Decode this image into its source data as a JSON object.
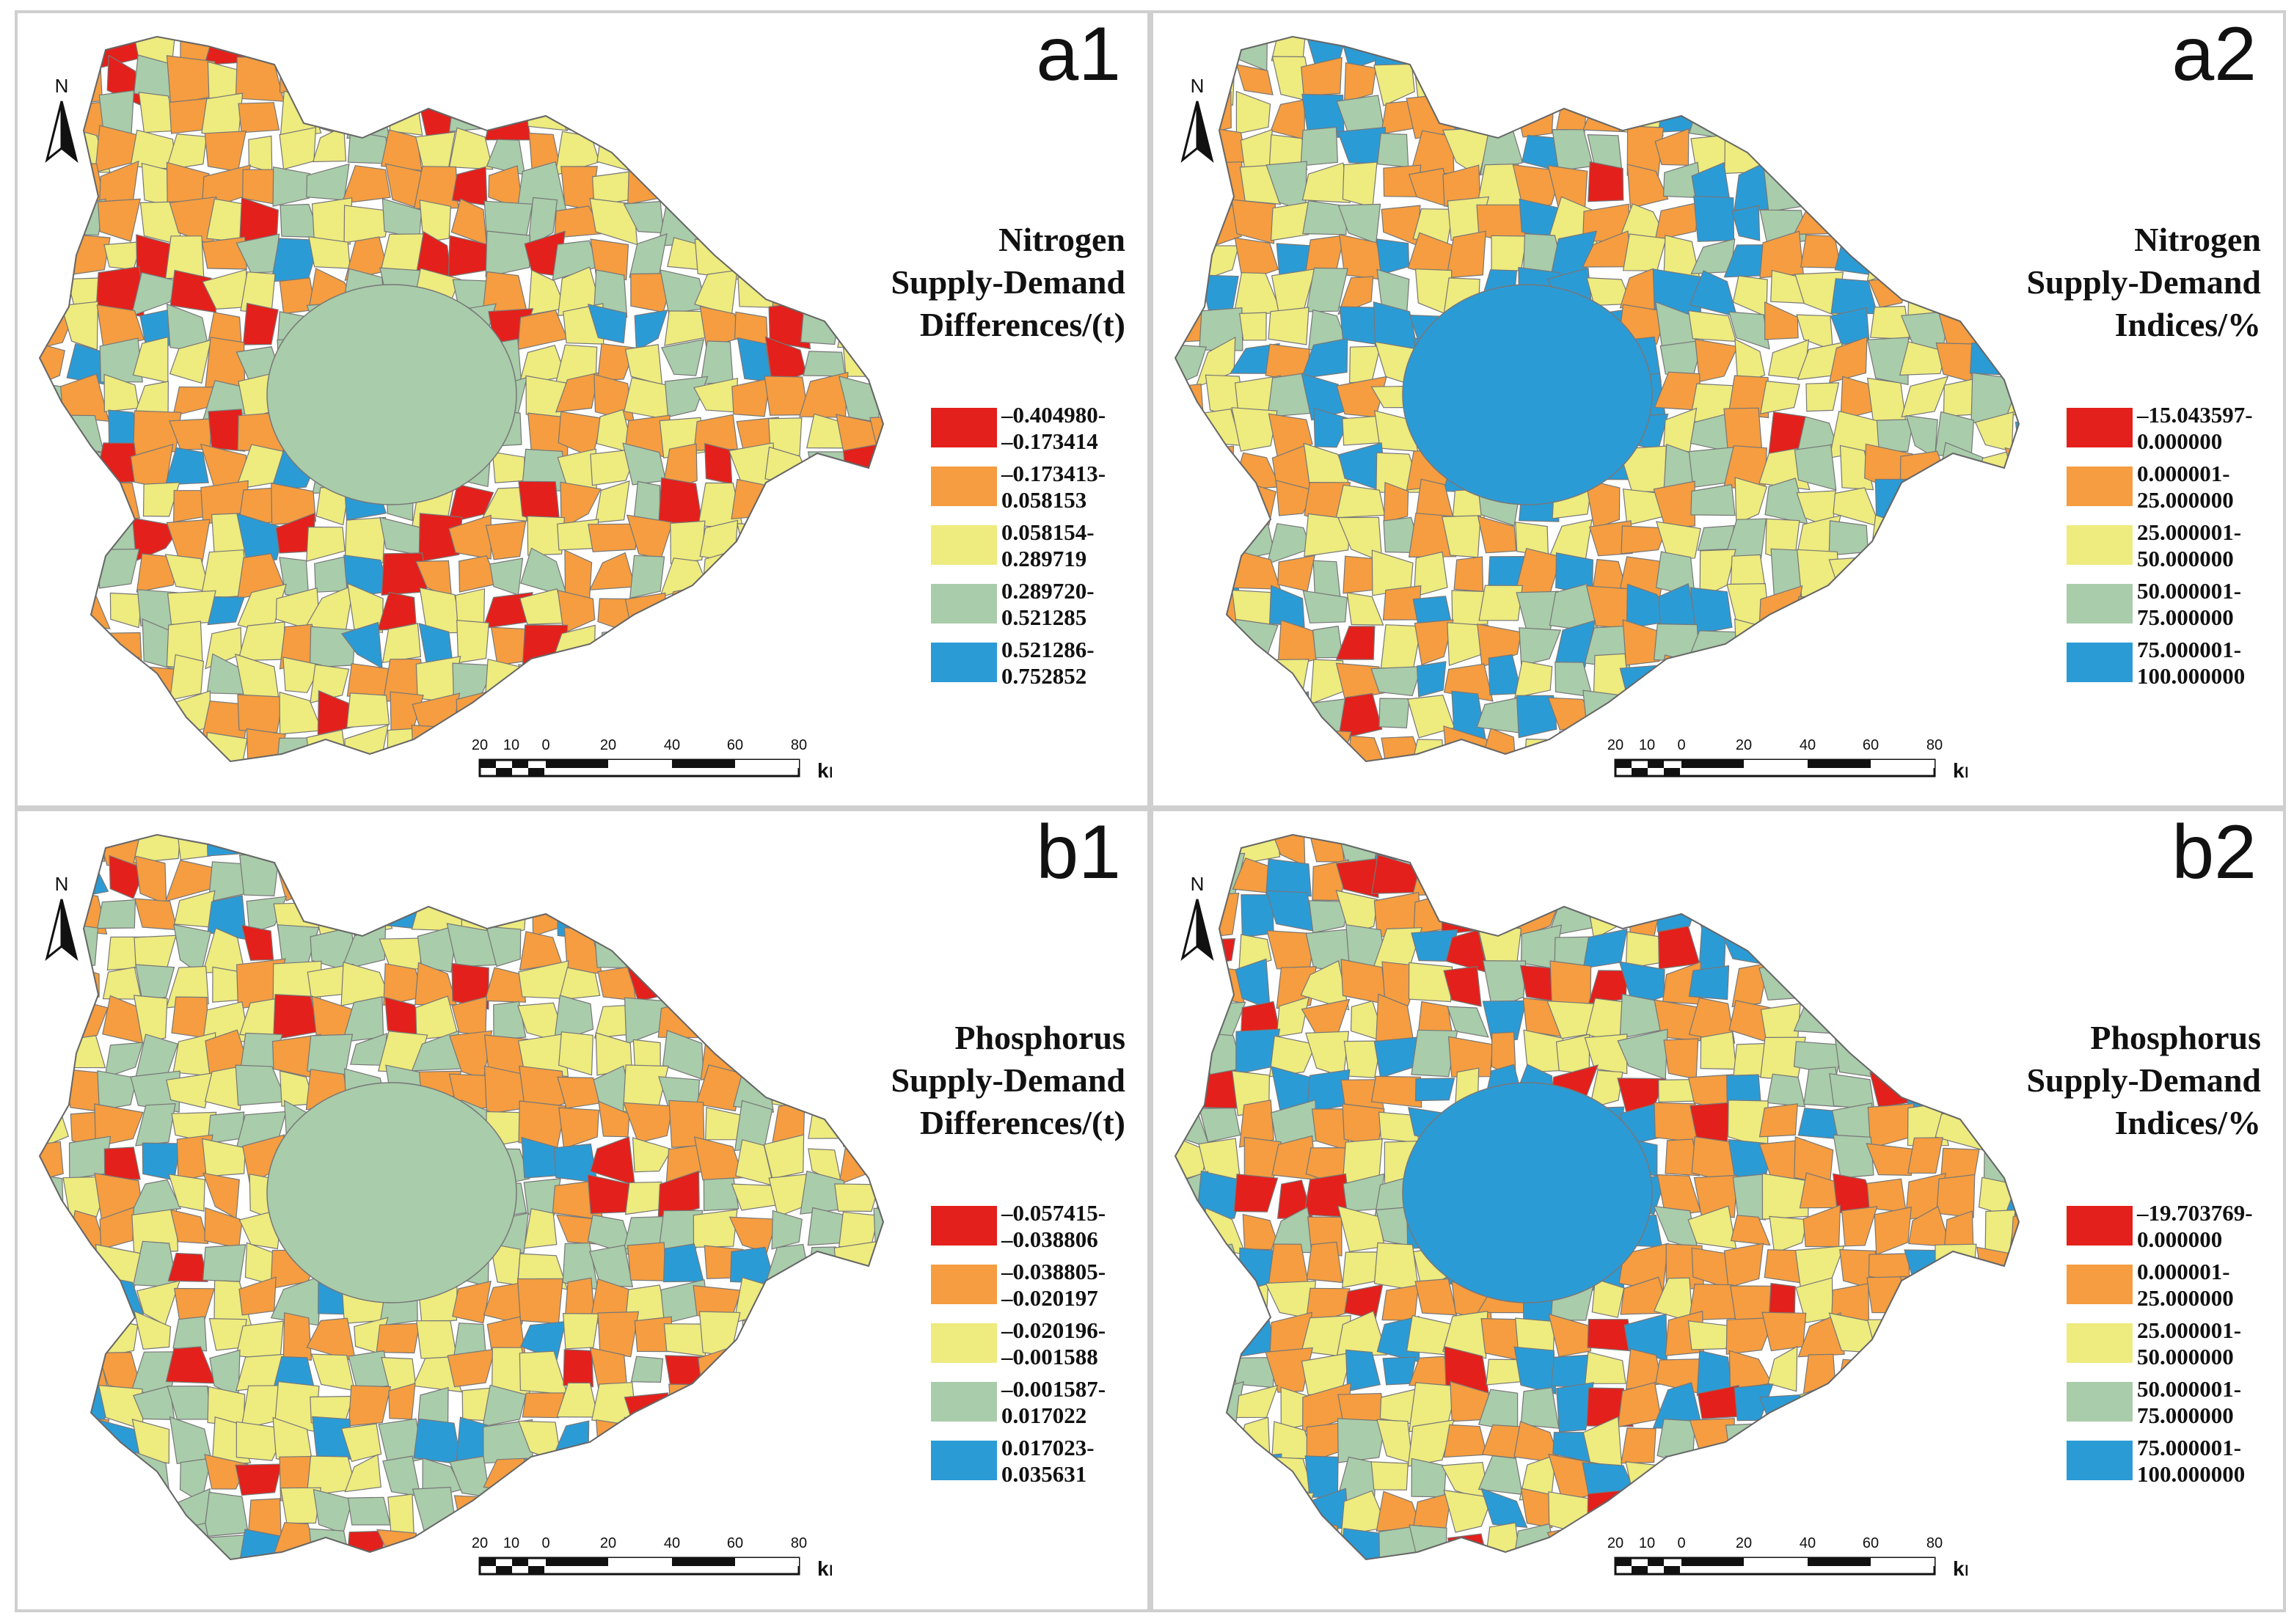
{
  "colors": {
    "class1": "#e3201b",
    "class2": "#f59d40",
    "class3": "#eeeb7f",
    "class4": "#a9ccaa",
    "class5": "#2b9bd6",
    "boundary": "#777777"
  },
  "north_label": "N",
  "scale": {
    "ticks": [
      "20",
      "10",
      "0",
      "20",
      "40",
      "60",
      "80"
    ],
    "unit": "km"
  },
  "panels": [
    {
      "label": "a1",
      "title_lines": [
        "Nitrogen",
        "Supply-Demand",
        "Differences/(t)"
      ],
      "legend": [
        {
          "line1": "–0.404980-",
          "line2": "–0.173414"
        },
        {
          "line1": "–0.173413-",
          "line2": "0.058153"
        },
        {
          "line1": "0.058154-",
          "line2": "0.289719"
        },
        {
          "line1": "0.289720-",
          "line2": "0.521285"
        },
        {
          "line1": "0.521286-",
          "line2": "0.752852"
        }
      ]
    },
    {
      "label": "a2",
      "title_lines": [
        "Nitrogen",
        "Supply-Demand",
        "Indices/%"
      ],
      "legend": [
        {
          "line1": "–15.043597-",
          "line2": "0.000000"
        },
        {
          "line1": "0.000001-",
          "line2": "25.000000"
        },
        {
          "line1": "25.000001-",
          "line2": "50.000000"
        },
        {
          "line1": "50.000001-",
          "line2": "75.000000"
        },
        {
          "line1": "75.000001-",
          "line2": "100.000000"
        }
      ]
    },
    {
      "label": "b1",
      "title_lines": [
        "Phosphorus",
        "Supply-Demand",
        "Differences/(t)"
      ],
      "legend": [
        {
          "line1": "–0.057415-",
          "line2": "–0.038806"
        },
        {
          "line1": "–0.038805-",
          "line2": "–0.020197"
        },
        {
          "line1": "–0.020196-",
          "line2": "–0.001588"
        },
        {
          "line1": "–0.001587-",
          "line2": "0.017022"
        },
        {
          "line1": "0.017023-",
          "line2": "0.035631"
        }
      ]
    },
    {
      "label": "b2",
      "title_lines": [
        "Phosphorus",
        "Supply-Demand",
        "Indices/%"
      ],
      "legend": [
        {
          "line1": "–19.703769-",
          "line2": "0.000000"
        },
        {
          "line1": "0.000001-",
          "line2": "25.000000"
        },
        {
          "line1": "25.000001-",
          "line2": "50.000000"
        },
        {
          "line1": "50.000001-",
          "line2": "75.000000"
        },
        {
          "line1": "75.000001-",
          "line2": "100.000000"
        }
      ]
    }
  ]
}
